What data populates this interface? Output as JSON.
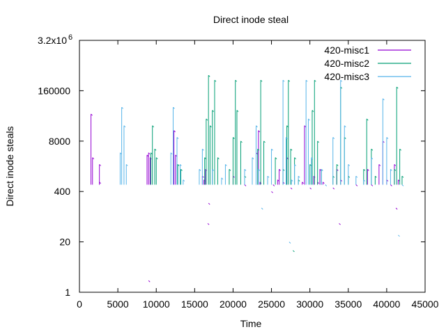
{
  "chart_data": {
    "type": "line",
    "title": "Direct inode steal",
    "xlabel": "Time",
    "ylabel": "Direct inode steals",
    "xlim": [
      0,
      45000
    ],
    "ylim": [
      1,
      3200000
    ],
    "yscale": "log",
    "grid": false,
    "legend_position": "top-right",
    "x_ticks": [
      0,
      5000,
      10000,
      15000,
      20000,
      25000,
      30000,
      35000,
      40000,
      45000
    ],
    "x_tick_labels": [
      "0",
      "5000",
      "10000",
      "15000",
      "20000",
      "25000",
      "30000",
      "35000",
      "40000",
      "45000"
    ],
    "y_ticks": [
      1,
      20,
      400,
      8000,
      160000,
      3200000
    ],
    "y_tick_labels": [
      "1",
      "20",
      "400",
      "8000",
      "160000",
      "3.2x10"
    ],
    "y_top_exponent": "6",
    "series": [
      {
        "name": "420-misc1",
        "color": "#9400d3",
        "points": [
          [
            1500,
            40000
          ],
          [
            1700,
            3000
          ],
          [
            2600,
            2000
          ],
          [
            2600,
            700
          ],
          [
            8800,
            3500
          ],
          [
            9000,
            4000
          ],
          [
            9000,
            2
          ],
          [
            9200,
            3000
          ],
          [
            12300,
            15000
          ],
          [
            12500,
            3500
          ],
          [
            16000,
            1000
          ],
          [
            16200,
            800
          ],
          [
            16400,
            1500
          ],
          [
            16700,
            60
          ],
          [
            16800,
            200
          ],
          [
            20000,
            1000
          ],
          [
            21500,
            600
          ],
          [
            23000,
            4000
          ],
          [
            23300,
            15000
          ],
          [
            23500,
            700
          ],
          [
            25000,
            400
          ],
          [
            25200,
            600
          ],
          [
            25800,
            800
          ],
          [
            26000,
            1500
          ],
          [
            26500,
            700
          ],
          [
            27000,
            3000
          ],
          [
            27500,
            500
          ],
          [
            29000,
            700
          ],
          [
            29300,
            20000
          ],
          [
            30000,
            500
          ],
          [
            30500,
            1000
          ],
          [
            31000,
            700
          ],
          [
            31300,
            1500
          ],
          [
            31700,
            700
          ],
          [
            33000,
            500
          ],
          [
            33500,
            1500
          ],
          [
            33800,
            60
          ],
          [
            34000,
            800
          ],
          [
            36000,
            600
          ],
          [
            37500,
            1500
          ],
          [
            38000,
            600
          ],
          [
            39000,
            2000
          ],
          [
            39500,
            8000
          ],
          [
            40000,
            800
          ],
          [
            40500,
            600
          ],
          [
            41000,
            2000
          ],
          [
            41200,
            150
          ],
          [
            41500,
            800
          ]
        ]
      },
      {
        "name": "420-misc2",
        "color": "#009e73",
        "points": [
          [
            9300,
            4000
          ],
          [
            9500,
            20000
          ],
          [
            9800,
            5000
          ],
          [
            10000,
            3000
          ],
          [
            12800,
            2000
          ],
          [
            13200,
            1500
          ],
          [
            16300,
            3000
          ],
          [
            16500,
            30000
          ],
          [
            16800,
            400000
          ],
          [
            17000,
            20000
          ],
          [
            17300,
            50000
          ],
          [
            17600,
            300000
          ],
          [
            18000,
            3000
          ],
          [
            19500,
            1500
          ],
          [
            20000,
            10000
          ],
          [
            20300,
            300000
          ],
          [
            20500,
            50000
          ],
          [
            21000,
            8000
          ],
          [
            21500,
            1000
          ],
          [
            23200,
            5000
          ],
          [
            23600,
            300000
          ],
          [
            24000,
            8000
          ],
          [
            25500,
            3000
          ],
          [
            26500,
            1500
          ],
          [
            27000,
            20000
          ],
          [
            27200,
            300000
          ],
          [
            27500,
            5000
          ],
          [
            27800,
            12
          ],
          [
            28000,
            3000
          ],
          [
            28500,
            800
          ],
          [
            30000,
            2000
          ],
          [
            30300,
            50000
          ],
          [
            30600,
            300000
          ],
          [
            31000,
            8000
          ],
          [
            31500,
            1500
          ],
          [
            33000,
            1000
          ],
          [
            33500,
            2000
          ],
          [
            34000,
            200000
          ],
          [
            34500,
            10000
          ],
          [
            35000,
            1000
          ],
          [
            37000,
            1500
          ],
          [
            37400,
            30000
          ],
          [
            38000,
            5000
          ],
          [
            38500,
            1000
          ],
          [
            41000,
            1500
          ],
          [
            41300,
            200000
          ],
          [
            41700,
            5000
          ],
          [
            42000,
            1000
          ]
        ]
      },
      {
        "name": "420-misc3",
        "color": "#56b4e9",
        "points": [
          [
            5300,
            4000
          ],
          [
            5500,
            60000
          ],
          [
            5800,
            20000
          ],
          [
            6100,
            2000
          ],
          [
            11900,
            4000
          ],
          [
            12200,
            60000
          ],
          [
            12700,
            10000
          ],
          [
            13100,
            2000
          ],
          [
            13500,
            800
          ],
          [
            15600,
            1500
          ],
          [
            16000,
            5000
          ],
          [
            17300,
            1500
          ],
          [
            18500,
            900
          ],
          [
            19000,
            2000
          ],
          [
            21500,
            1500
          ],
          [
            22500,
            3000
          ],
          [
            23000,
            20000
          ],
          [
            23300,
            1500
          ],
          [
            23700,
            150
          ],
          [
            24500,
            1000
          ],
          [
            25000,
            5000
          ],
          [
            26500,
            300000
          ],
          [
            26900,
            10000
          ],
          [
            27300,
            20
          ],
          [
            27600,
            800
          ],
          [
            28000,
            2000
          ],
          [
            28500,
            1000
          ],
          [
            29500,
            300000
          ],
          [
            29800,
            30000
          ],
          [
            30200,
            3000
          ],
          [
            31500,
            1500
          ],
          [
            32000,
            600
          ],
          [
            33000,
            10000
          ],
          [
            34000,
            300000
          ],
          [
            34500,
            20000
          ],
          [
            35000,
            2000
          ],
          [
            36000,
            1000
          ],
          [
            37000,
            800
          ],
          [
            38000,
            3000
          ],
          [
            39500,
            100000
          ],
          [
            40000,
            10000
          ],
          [
            40500,
            1500
          ],
          [
            41500,
            30
          ],
          [
            42000,
            600
          ]
        ]
      }
    ]
  }
}
